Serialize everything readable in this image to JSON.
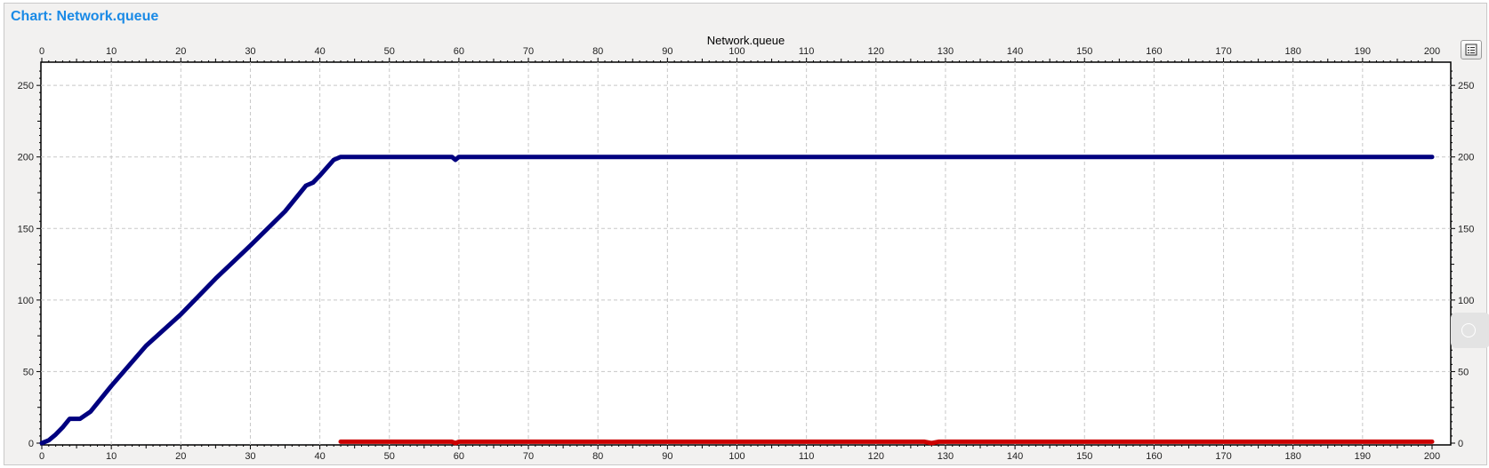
{
  "window": {
    "title": "Chart: Network.queue"
  },
  "toolbar": {
    "legend_icon": "list-icon",
    "side_handle_icon": "circle-icon"
  },
  "chart_data": {
    "type": "line",
    "title": "Network.queue",
    "xlabel": "",
    "ylabel": "",
    "xlim": [
      0,
      200
    ],
    "ylim": [
      0,
      265
    ],
    "x_ticks": [
      0,
      10,
      20,
      30,
      40,
      50,
      60,
      70,
      80,
      90,
      100,
      110,
      120,
      130,
      140,
      150,
      160,
      170,
      180,
      190,
      200
    ],
    "y_ticks": [
      0,
      50,
      100,
      150,
      200,
      250
    ],
    "grid": true,
    "mirrored_axes": true,
    "series": [
      {
        "color": "#00007f",
        "points": [
          [
            0,
            0
          ],
          [
            1,
            2
          ],
          [
            2,
            6
          ],
          [
            3,
            11
          ],
          [
            4,
            17
          ],
          [
            5,
            17
          ],
          [
            5.5,
            17
          ],
          [
            7,
            22
          ],
          [
            10,
            40
          ],
          [
            15,
            68
          ],
          [
            20,
            90
          ],
          [
            25,
            115
          ],
          [
            30,
            138
          ],
          [
            35,
            162
          ],
          [
            38,
            180
          ],
          [
            39,
            182
          ],
          [
            40,
            187
          ],
          [
            42,
            198
          ],
          [
            43,
            200
          ],
          [
            59,
            200
          ],
          [
            59.5,
            198
          ],
          [
            60,
            200
          ],
          [
            200,
            200
          ]
        ]
      },
      {
        "color": "#cc0000",
        "points": [
          [
            43,
            1
          ],
          [
            59,
            1
          ],
          [
            59.5,
            0
          ],
          [
            60,
            1
          ],
          [
            127,
            1
          ],
          [
            128,
            0
          ],
          [
            129,
            1
          ],
          [
            200,
            1
          ]
        ]
      }
    ]
  }
}
